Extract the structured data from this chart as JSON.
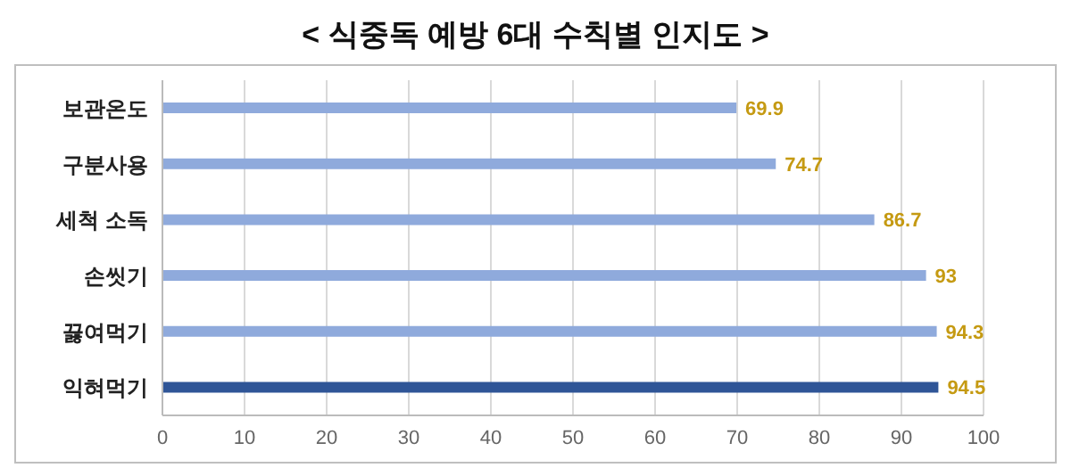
{
  "chart_data": {
    "type": "bar",
    "orientation": "horizontal",
    "title": "< 식중독 예방 6대 수칙별 인지도 >",
    "categories": [
      "보관온도",
      "구분사용",
      "세척 소독",
      "손씻기",
      "끓여먹기",
      "익혀먹기"
    ],
    "values": [
      69.9,
      74.7,
      86.7,
      93,
      94.3,
      94.5
    ],
    "colors": [
      "#8faadc",
      "#8faadc",
      "#8faadc",
      "#8faadc",
      "#8faadc",
      "#2f5597"
    ],
    "xlim": [
      0,
      100
    ],
    "xticks": [
      0,
      10,
      20,
      30,
      40,
      50,
      60,
      70,
      80,
      90,
      100
    ],
    "grid": "x",
    "data_labels": true
  }
}
